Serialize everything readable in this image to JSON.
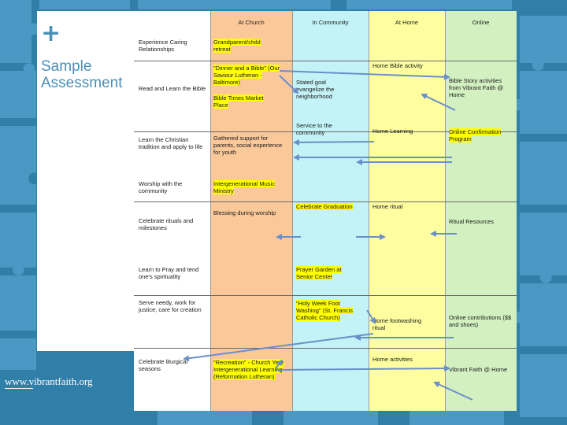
{
  "slide": {
    "plus": "+",
    "title_lines": [
      "Sample",
      "Assessment"
    ],
    "footer_url": "www.vibrantfaith.org"
  },
  "colors": {
    "background_blue": "#2f7fa8",
    "puzzle_light": "#4f9dc9",
    "church_column": "#fbc89a",
    "community_column": "#c3f3f7",
    "home_column": "#fefea0",
    "online_column": "#d3f0c1",
    "highlight": "#ffff00",
    "arrow": "#6a8fc9"
  },
  "table": {
    "headers": {
      "church": "At Church",
      "community": "In Community",
      "home": "At Home",
      "online": "Online"
    },
    "rows": [
      {
        "label": "Experience Caring Relationships",
        "church": "Grandparent/child retreat",
        "community": "",
        "home": "",
        "online": ""
      },
      {
        "label": "Read and Learn the Bible",
        "church_1": "\"Dinner and a Bible\" (Our Saviour Lutheran - Baltimore)",
        "church_2": "Bible Times Market Place",
        "community": "Stated goal evangelize the neighborhood",
        "home": "Home Bible activity",
        "online": "Bible Story activities from Vibrant Faith @ Home"
      },
      {
        "label": "Learn the Christian tradition and apply to life",
        "church": "Gathered support for parents, social experience for youth",
        "community": "Service to the community",
        "home": "Home Learning",
        "online": "Online Confirmation Program"
      },
      {
        "label": "Worship with the community",
        "church": "Intergenerational Music Ministry",
        "community": "",
        "home": "",
        "online": ""
      },
      {
        "label": "Celebrate rituals and milestones",
        "church": "Blessing during worship",
        "community": "Celebrate Graduation",
        "home": "Home ritual",
        "online": "Ritual Resources"
      },
      {
        "label": "Learn to Pray and tend one's spirituality",
        "church": "",
        "community": "Prayer Garden at Senior Center",
        "home": "",
        "online": ""
      },
      {
        "label": "Serve needy, work for justice, care for creation",
        "church": "",
        "community": "\"Holy Week Foot Washing\" (St. Francis Catholic Church)",
        "home": "Home footwashing ritual",
        "online": "Online contributions ($$ and shoes)"
      },
      {
        "label": "Celebrate liturgical seasons",
        "church": "\"Recreation\" - Church Year Intergenerational Learning (Reformation Lutheran)",
        "community": "",
        "home": "Home activities",
        "online": "Vibrant Faith @ Home"
      }
    ]
  }
}
